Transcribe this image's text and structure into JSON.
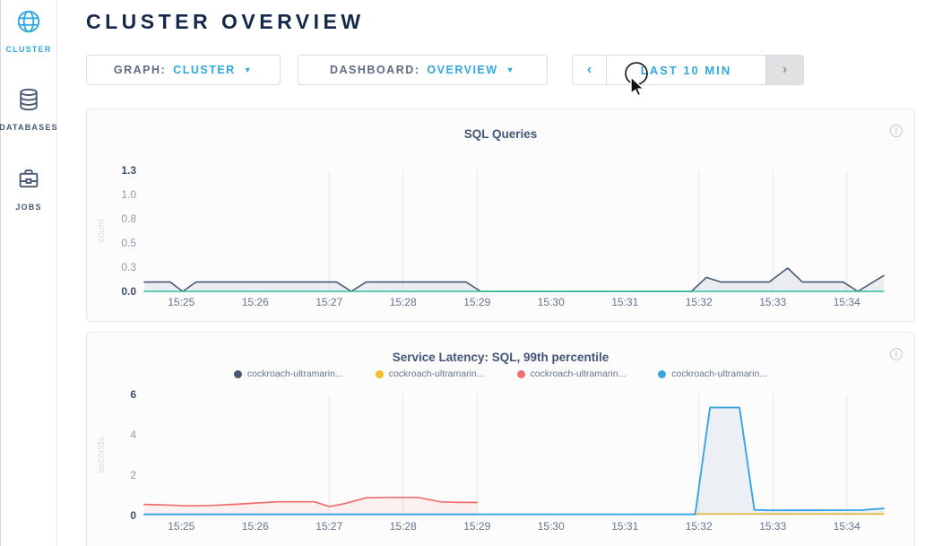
{
  "header": {
    "title": "CLUSTER OVERVIEW"
  },
  "sidebar": {
    "items": [
      {
        "label": "CLUSTER",
        "icon": "globe-icon",
        "active": true
      },
      {
        "label": "DATABASES",
        "icon": "database-icon",
        "active": false
      },
      {
        "label": "JOBS",
        "icon": "briefcase-icon",
        "active": false
      }
    ]
  },
  "controls": {
    "graph": {
      "label": "GRAPH:",
      "value": "CLUSTER"
    },
    "dashboard": {
      "label": "DASHBOARD:",
      "value": "OVERVIEW"
    },
    "timewindow": {
      "prev": "‹",
      "label": "LAST 10 MIN",
      "next": "›"
    }
  },
  "colors": {
    "accent_blue": "#30a8e0",
    "navy": "#152849",
    "slate": "#475872",
    "teal": "#2ebf9b",
    "series_red": "#f16d6d",
    "series_yellow": "#f2be2c",
    "series_blue": "#3aa3e2"
  },
  "chart_data": [
    {
      "type": "area",
      "title": "SQL Queries",
      "ylabel": "count",
      "ylim": [
        0,
        1.3
      ],
      "ytick_labels": [
        "1.3",
        "1.0",
        "0.8",
        "0.5",
        "0.3",
        "0.0"
      ],
      "x_range_minutes": [
        24.5,
        34.5
      ],
      "xtick_minutes": [
        25,
        26,
        27,
        28,
        29,
        30,
        31,
        32,
        33,
        34
      ],
      "xtick_labels": [
        "15:25",
        "15:26",
        "15:27",
        "15:28",
        "15:29",
        "15:30",
        "15:31",
        "15:32",
        "15:33",
        "15:34"
      ],
      "gridline_minutes": [
        27,
        28,
        29,
        32,
        33,
        34
      ],
      "grid": "vertical-only",
      "legend_position": "none",
      "series": [
        {
          "name": "sql-queries",
          "color": "#475872",
          "fill": "rgba(71,88,114,0.09)",
          "width": 1.6,
          "points": [
            [
              24.5,
              0.1
            ],
            [
              24.85,
              0.1
            ],
            [
              25.02,
              0
            ],
            [
              25.2,
              0.1
            ],
            [
              27.1,
              0.1
            ],
            [
              27.3,
              0
            ],
            [
              27.5,
              0.1
            ],
            [
              28.85,
              0.1
            ],
            [
              29.05,
              0
            ],
            [
              31.9,
              0
            ],
            [
              32.1,
              0.15
            ],
            [
              32.3,
              0.1
            ],
            [
              32.95,
              0.1
            ],
            [
              33.2,
              0.25
            ],
            [
              33.4,
              0.1
            ],
            [
              33.95,
              0.1
            ],
            [
              34.15,
              0
            ],
            [
              34.5,
              0.17
            ]
          ]
        },
        {
          "name": "zero-baseline",
          "color": "#2ebf9b",
          "width": 1.4,
          "points": [
            [
              24.5,
              0
            ],
            [
              34.5,
              0
            ]
          ]
        }
      ]
    },
    {
      "type": "area",
      "title": "Service Latency: SQL, 99th percentile",
      "ylabel": "seconds",
      "ylim": [
        0,
        6
      ],
      "ytick_labels": [
        "6",
        "4",
        "2",
        "0"
      ],
      "x_range_minutes": [
        24.5,
        34.5
      ],
      "xtick_minutes": [
        25,
        26,
        27,
        28,
        29,
        30,
        31,
        32,
        33,
        34
      ],
      "xtick_labels": [
        "15:25",
        "15:26",
        "15:27",
        "15:28",
        "15:29",
        "15:30",
        "15:31",
        "15:32",
        "15:33",
        "15:34"
      ],
      "gridline_minutes": [
        27,
        28,
        29,
        32,
        33,
        34
      ],
      "grid": "vertical-only",
      "legend_position": "top",
      "legend": [
        {
          "label": "cockroach-ultramarin...",
          "color": "#475872"
        },
        {
          "label": "cockroach-ultramarin...",
          "color": "#f2be2c"
        },
        {
          "label": "cockroach-ultramarin...",
          "color": "#f16d6d"
        },
        {
          "label": "cockroach-ultramarin...",
          "color": "#3aa3e2"
        }
      ],
      "series": [
        {
          "name": "node-latency-red",
          "color": "#f16d6d",
          "fill": "rgba(241,109,109,0.09)",
          "width": 1.7,
          "points": [
            [
              24.5,
              0.55
            ],
            [
              24.8,
              0.52
            ],
            [
              25.1,
              0.48
            ],
            [
              25.4,
              0.5
            ],
            [
              25.7,
              0.55
            ],
            [
              26.0,
              0.62
            ],
            [
              26.3,
              0.68
            ],
            [
              26.8,
              0.68
            ],
            [
              27.0,
              0.45
            ],
            [
              27.2,
              0.58
            ],
            [
              27.5,
              0.88
            ],
            [
              27.8,
              0.9
            ],
            [
              28.2,
              0.9
            ],
            [
              28.5,
              0.68
            ],
            [
              28.75,
              0.65
            ],
            [
              29.0,
              0.65
            ]
          ]
        },
        {
          "name": "node-latency-yellow",
          "color": "#f2be2c",
          "width": 1.6,
          "points": [
            [
              31.9,
              0.08
            ],
            [
              34.5,
              0.08
            ]
          ]
        },
        {
          "name": "node-latency-blue",
          "color": "#3aa3e2",
          "fill": "rgba(100,140,175,0.10)",
          "width": 1.9,
          "points": [
            [
              24.5,
              0.06
            ],
            [
              31.95,
              0.06
            ],
            [
              32.15,
              5.35
            ],
            [
              32.55,
              5.35
            ],
            [
              32.75,
              0.28
            ],
            [
              33.0,
              0.26
            ],
            [
              34.2,
              0.27
            ],
            [
              34.5,
              0.35
            ]
          ]
        }
      ]
    }
  ]
}
